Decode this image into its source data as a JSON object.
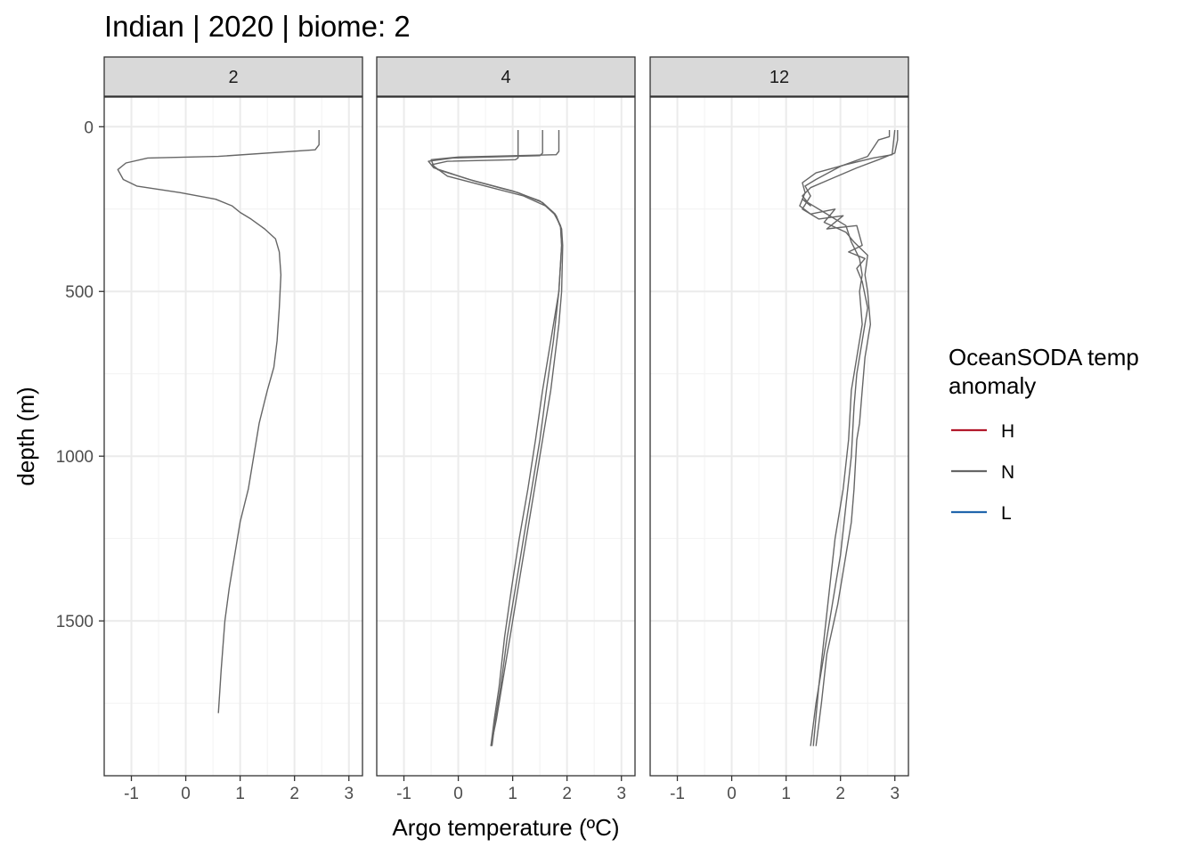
{
  "chart_data": {
    "type": "line",
    "title": "Indian | 2020 | biome: 2",
    "xlabel": "Argo temperature (ºC)",
    "ylabel": "depth (m)",
    "xlim": [
      -1.5,
      3.25
    ],
    "ylim": [
      1970,
      -90
    ],
    "x_ticks": [
      -1,
      0,
      1,
      2,
      3
    ],
    "x_tick_labels": [
      "-1",
      "0",
      "1",
      "2",
      "3"
    ],
    "y_ticks": [
      0,
      500,
      1000,
      1500
    ],
    "y_tick_labels": [
      "0",
      "500",
      "1000",
      "1500"
    ],
    "grid": true,
    "legend": {
      "title_lines": [
        "OceanSODA temp",
        "anomaly"
      ],
      "position": "right",
      "entries": [
        {
          "label": "H",
          "color": "#b2182b"
        },
        {
          "label": "N",
          "color": "#666666"
        },
        {
          "label": "L",
          "color": "#2166ac"
        }
      ]
    },
    "panels": [
      {
        "facet": "2",
        "series": [
          {
            "anomaly": "N",
            "x": [
              2.45,
              2.45,
              2.38,
              0.6,
              -0.7,
              -1.1,
              -1.25,
              -1.15,
              -0.9,
              -0.1,
              0.55,
              0.85,
              1.0,
              1.2,
              1.45,
              1.65,
              1.72,
              1.75,
              1.72,
              1.68,
              1.62,
              1.5,
              1.35,
              1.25,
              1.15,
              1.0,
              0.9,
              0.8,
              0.72,
              0.65,
              0.6
            ],
            "y": [
              10,
              55,
              70,
              90,
              95,
              110,
              130,
              160,
              180,
              200,
              220,
              240,
              260,
              280,
              310,
              340,
              380,
              450,
              550,
              650,
              730,
              800,
              900,
              1000,
              1100,
              1200,
              1300,
              1400,
              1500,
              1650,
              1780
            ]
          }
        ]
      },
      {
        "facet": "4",
        "series": [
          {
            "anomaly": "N",
            "x": [
              1.85,
              1.85,
              1.8,
              0.0,
              -0.5,
              -0.45,
              -0.2,
              0.5,
              1.2,
              1.6,
              1.8,
              1.9,
              1.92,
              1.9,
              1.85,
              1.7,
              1.55,
              1.4,
              1.25,
              1.1,
              0.95,
              0.8,
              0.7,
              0.6
            ],
            "y": [
              10,
              75,
              85,
              92,
              100,
              120,
              150,
              180,
              210,
              240,
              270,
              310,
              360,
              500,
              600,
              800,
              950,
              1100,
              1250,
              1400,
              1550,
              1700,
              1800,
              1880
            ]
          },
          {
            "anomaly": "N",
            "x": [
              1.55,
              1.55,
              1.5,
              -0.1,
              -0.55,
              -0.45,
              0.2,
              1.0,
              1.5,
              1.75,
              1.88,
              1.9,
              1.85,
              1.75,
              1.62,
              1.5,
              1.35,
              1.2,
              1.05,
              0.9,
              0.78,
              0.68,
              0.62
            ],
            "y": [
              10,
              80,
              88,
              95,
              105,
              125,
              160,
              195,
              225,
              260,
              300,
              360,
              500,
              650,
              800,
              950,
              1100,
              1250,
              1400,
              1550,
              1700,
              1800,
              1880
            ]
          },
          {
            "anomaly": "N",
            "x": [
              1.1,
              1.1,
              1.05,
              -0.2,
              -0.48,
              -0.38,
              0.3,
              1.1,
              1.55,
              1.78,
              1.88,
              1.9,
              1.85,
              1.7,
              1.55,
              1.42,
              1.28,
              1.12,
              0.98,
              0.85,
              0.75,
              0.66,
              0.6
            ],
            "y": [
              10,
              95,
              100,
              105,
              115,
              130,
              165,
              200,
              230,
              265,
              305,
              360,
              500,
              650,
              800,
              950,
              1100,
              1250,
              1400,
              1550,
              1700,
              1800,
              1880
            ]
          }
        ]
      },
      {
        "facet": "12",
        "series": [
          {
            "anomaly": "N",
            "x": [
              3.0,
              2.95,
              2.6,
              2.1,
              1.55,
              1.3,
              1.35,
              1.25,
              1.45,
              1.9,
              1.7,
              2.1,
              2.25,
              2.5,
              2.45,
              2.5,
              2.55,
              2.45,
              2.4,
              2.35,
              2.3,
              2.25,
              2.2,
              2.1,
              1.95,
              1.75,
              1.65,
              1.55
            ],
            "y": [
              10,
              85,
              95,
              115,
              140,
              170,
              200,
              240,
              265,
              250,
              290,
              320,
              350,
              390,
              450,
              500,
              600,
              700,
              800,
              900,
              950,
              1100,
              1200,
              1300,
              1450,
              1600,
              1750,
              1880
            ]
          },
          {
            "anomaly": "N",
            "x": [
              2.9,
              2.9,
              2.7,
              2.5,
              2.0,
              1.55,
              1.35,
              1.45,
              1.3,
              1.6,
              2.05,
              1.75,
              2.3,
              2.4,
              2.15,
              2.45,
              2.3,
              2.4,
              2.5,
              2.4,
              2.3,
              2.25,
              2.2,
              2.1,
              2.0,
              1.85,
              1.7,
              1.55,
              1.45
            ],
            "y": [
              10,
              30,
              40,
              90,
              120,
              160,
              180,
              210,
              250,
              280,
              270,
              310,
              300,
              360,
              380,
              400,
              430,
              470,
              550,
              650,
              750,
              850,
              1000,
              1150,
              1300,
              1450,
              1600,
              1750,
              1880
            ]
          },
          {
            "anomaly": "N",
            "x": [
              3.05,
              3.05,
              3.0,
              2.7,
              2.3,
              1.8,
              1.45,
              1.3,
              1.45,
              1.3,
              1.7,
              2.1,
              2.2,
              2.35,
              2.4,
              2.35,
              2.4,
              2.3,
              2.2,
              2.15,
              2.05,
              1.9,
              1.8,
              1.7,
              1.6,
              1.5
            ],
            "y": [
              10,
              40,
              80,
              100,
              125,
              160,
              185,
              210,
              240,
              220,
              260,
              300,
              350,
              400,
              450,
              500,
              600,
              700,
              800,
              950,
              1100,
              1250,
              1400,
              1550,
              1700,
              1880
            ]
          }
        ]
      }
    ]
  }
}
